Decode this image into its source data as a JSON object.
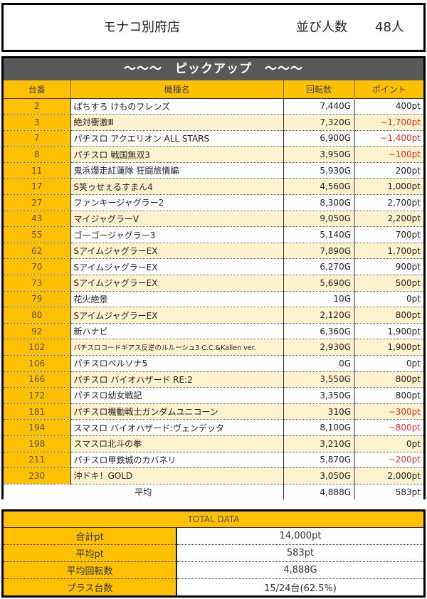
{
  "header": {
    "store_name": "モナコ別府店",
    "queue_label": "並び人数",
    "queue_value": "48人"
  },
  "pickup": {
    "title": "～～～　ピックアップ　～～～",
    "columns": [
      "台番",
      "機種名",
      "回転数",
      "ポイント"
    ],
    "rows": [
      {
        "num": "2",
        "name": "ぱちすろ けものフレンズ",
        "games": "7,440G",
        "points": "400pt",
        "negative": false
      },
      {
        "num": "3",
        "name": "絶対衝激Ⅲ",
        "games": "7,320G",
        "points": "−1,700pt",
        "negative": true
      },
      {
        "num": "7",
        "name": "パチスロ アクエリオン ALL STARS",
        "games": "6,900G",
        "points": "−1,400pt",
        "negative": true
      },
      {
        "num": "8",
        "name": "パチスロ 戦国無双3",
        "games": "3,950G",
        "points": "−100pt",
        "negative": true
      },
      {
        "num": "11",
        "name": "鬼浜爆走紅蓮隊 狂闘旅情編",
        "games": "5,930G",
        "points": "200pt",
        "negative": false
      },
      {
        "num": "17",
        "name": "S笑ゥせぇるすまん4",
        "games": "4,560G",
        "points": "1,000pt",
        "negative": false
      },
      {
        "num": "27",
        "name": "ファンキージャグラー2",
        "games": "8,300G",
        "points": "2,700pt",
        "negative": false
      },
      {
        "num": "43",
        "name": "マイジャグラーV",
        "games": "9,050G",
        "points": "2,200pt",
        "negative": false
      },
      {
        "num": "55",
        "name": "ゴーゴージャグラー3",
        "games": "5,140G",
        "points": "700pt",
        "negative": false
      },
      {
        "num": "62",
        "name": "SアイムジャグラーEX",
        "games": "7,890G",
        "points": "1,700pt",
        "negative": false
      },
      {
        "num": "70",
        "name": "SアイムジャグラーEX",
        "games": "6,270G",
        "points": "900pt",
        "negative": false
      },
      {
        "num": "73",
        "name": "SアイムジャグラーEX",
        "games": "5,690G",
        "points": "500pt",
        "negative": false
      },
      {
        "num": "79",
        "name": "花火絶景",
        "games": "10G",
        "points": "0pt",
        "negative": false
      },
      {
        "num": "80",
        "name": "SアイムジャグラーEX",
        "games": "2,120G",
        "points": "800pt",
        "negative": false
      },
      {
        "num": "92",
        "name": "新ハナビ",
        "games": "6,360G",
        "points": "1,900pt",
        "negative": false
      },
      {
        "num": "102",
        "name": "パチスロコードギアス反逆のルルーシュ3 C.C.&Kallen ver.",
        "games": "2,930G",
        "points": "1,900pt",
        "negative": false
      },
      {
        "num": "106",
        "name": "パチスロペルソナ5",
        "games": "0G",
        "points": "0pt",
        "negative": false
      },
      {
        "num": "166",
        "name": "パチスロ バイオハザード RE:2",
        "games": "3,550G",
        "points": "800pt",
        "negative": false
      },
      {
        "num": "172",
        "name": "パチスロ幼女戦記",
        "games": "3,350G",
        "points": "800pt",
        "negative": false
      },
      {
        "num": "181",
        "name": "パチスロ機動戦士ガンダムユニコーン",
        "games": "310G",
        "points": "−300pt",
        "negative": true
      },
      {
        "num": "194",
        "name": "スマスロ バイオハザード:ヴェンデッタ",
        "games": "8,100G",
        "points": "−800pt",
        "negative": true
      },
      {
        "num": "198",
        "name": "スマスロ北斗の拳",
        "games": "3,210G",
        "points": "0pt",
        "negative": false
      },
      {
        "num": "211",
        "name": "パチスロ甲鉄城のカバネリ",
        "games": "5,870G",
        "points": "−200pt",
        "negative": true
      },
      {
        "num": "230",
        "name": "沖ドキ！GOLD",
        "games": "3,050G",
        "points": "2,000pt",
        "negative": false
      }
    ],
    "average": {
      "label": "平均",
      "games": "4,888G",
      "points": "583pt"
    }
  },
  "total": {
    "title": "TOTAL DATA",
    "rows": [
      {
        "label": "合計pt",
        "value": "14,000pt"
      },
      {
        "label": "平均pt",
        "value": "583pt"
      },
      {
        "label": "平均回転数",
        "value": "4,888G"
      },
      {
        "label": "プラス台数",
        "value": "15/24台(62.5%)"
      }
    ]
  },
  "colors": {
    "accent_yellow": "#ffc000",
    "alt_row": "#fff2cc",
    "title_bar": "#595959",
    "negative": "#e03030"
  }
}
